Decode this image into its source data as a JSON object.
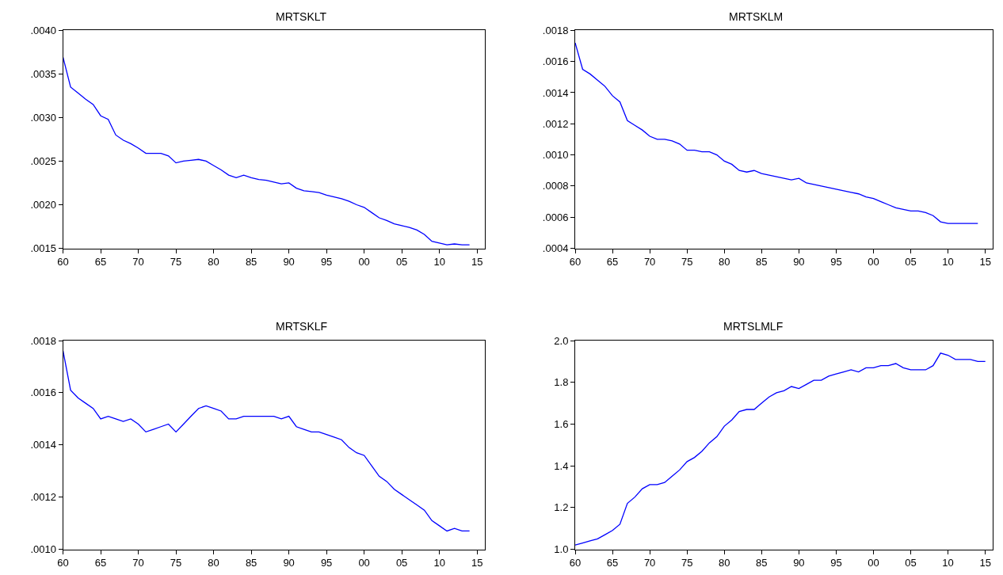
{
  "chart_data": [
    {
      "type": "line",
      "title": "MRTSKLT",
      "x": [
        1960,
        1961,
        1962,
        1963,
        1964,
        1965,
        1966,
        1967,
        1968,
        1969,
        1970,
        1971,
        1972,
        1973,
        1974,
        1975,
        1976,
        1977,
        1978,
        1979,
        1980,
        1981,
        1982,
        1983,
        1984,
        1985,
        1986,
        1987,
        1988,
        1989,
        1990,
        1991,
        1992,
        1993,
        1994,
        1995,
        1996,
        1997,
        1998,
        1999,
        2000,
        2001,
        2002,
        2003,
        2004,
        2005,
        2006,
        2007,
        2008,
        2009,
        2010,
        2011,
        2012,
        2013,
        2014
      ],
      "series": [
        {
          "color": "#0000ff",
          "values": [
            0.00369,
            0.00335,
            0.00328,
            0.00321,
            0.00315,
            0.00302,
            0.00298,
            0.0028,
            0.00274,
            0.0027,
            0.00265,
            0.00259,
            0.00259,
            0.00259,
            0.00256,
            0.00248,
            0.0025,
            0.00251,
            0.00252,
            0.0025,
            0.00245,
            0.0024,
            0.00234,
            0.00231,
            0.00234,
            0.00231,
            0.00229,
            0.00228,
            0.00226,
            0.00224,
            0.00225,
            0.00219,
            0.00216,
            0.00215,
            0.00214,
            0.00211,
            0.00209,
            0.00207,
            0.00204,
            0.002,
            0.00197,
            0.00191,
            0.00185,
            0.00182,
            0.00178,
            0.00176,
            0.00174,
            0.00171,
            0.00166,
            0.00158,
            0.00156,
            0.00154,
            0.00155,
            0.00154,
            0.00154
          ]
        }
      ],
      "xlim": [
        1960,
        2016
      ],
      "xticks": [
        {
          "value": 1960,
          "label": "60"
        },
        {
          "value": 1965,
          "label": "65"
        },
        {
          "value": 1970,
          "label": "70"
        },
        {
          "value": 1975,
          "label": "75"
        },
        {
          "value": 1980,
          "label": "80"
        },
        {
          "value": 1985,
          "label": "85"
        },
        {
          "value": 1990,
          "label": "90"
        },
        {
          "value": 1995,
          "label": "95"
        },
        {
          "value": 2000,
          "label": "00"
        },
        {
          "value": 2005,
          "label": "05"
        },
        {
          "value": 2010,
          "label": "10"
        },
        {
          "value": 2015,
          "label": "15"
        }
      ],
      "ylim": [
        0.0015,
        0.004
      ],
      "yticks": [
        {
          "value": 0.0015,
          "label": ".0015"
        },
        {
          "value": 0.002,
          "label": ".0020"
        },
        {
          "value": 0.0025,
          "label": ".0025"
        },
        {
          "value": 0.003,
          "label": ".0030"
        },
        {
          "value": 0.0035,
          "label": ".0035"
        },
        {
          "value": 0.004,
          "label": ".0040"
        }
      ],
      "marker": "none",
      "line_style": "solid"
    },
    {
      "type": "line",
      "title": "MRTSKLM",
      "x": [
        1960,
        1961,
        1962,
        1963,
        1964,
        1965,
        1966,
        1967,
        1968,
        1969,
        1970,
        1971,
        1972,
        1973,
        1974,
        1975,
        1976,
        1977,
        1978,
        1979,
        1980,
        1981,
        1982,
        1983,
        1984,
        1985,
        1986,
        1987,
        1988,
        1989,
        1990,
        1991,
        1992,
        1993,
        1994,
        1995,
        1996,
        1997,
        1998,
        1999,
        2000,
        2001,
        2002,
        2003,
        2004,
        2005,
        2006,
        2007,
        2008,
        2009,
        2010,
        2011,
        2012,
        2013,
        2014
      ],
      "series": [
        {
          "color": "#0000ff",
          "values": [
            0.00172,
            0.00155,
            0.00152,
            0.00148,
            0.00144,
            0.00138,
            0.00134,
            0.00122,
            0.00119,
            0.00116,
            0.00112,
            0.0011,
            0.0011,
            0.00109,
            0.00107,
            0.00103,
            0.00103,
            0.00102,
            0.00102,
            0.001,
            0.00096,
            0.00094,
            0.0009,
            0.00089,
            0.0009,
            0.00088,
            0.00087,
            0.00086,
            0.00085,
            0.00084,
            0.00085,
            0.00082,
            0.00081,
            0.0008,
            0.00079,
            0.00078,
            0.00077,
            0.00076,
            0.00075,
            0.00073,
            0.00072,
            0.0007,
            0.00068,
            0.00066,
            0.00065,
            0.00064,
            0.00064,
            0.00063,
            0.00061,
            0.00057,
            0.00056,
            0.00056,
            0.00056,
            0.00056,
            0.00056
          ]
        }
      ],
      "xlim": [
        1960,
        2016
      ],
      "xticks": [
        {
          "value": 1960,
          "label": "60"
        },
        {
          "value": 1965,
          "label": "65"
        },
        {
          "value": 1970,
          "label": "70"
        },
        {
          "value": 1975,
          "label": "75"
        },
        {
          "value": 1980,
          "label": "80"
        },
        {
          "value": 1985,
          "label": "85"
        },
        {
          "value": 1990,
          "label": "90"
        },
        {
          "value": 1995,
          "label": "95"
        },
        {
          "value": 2000,
          "label": "00"
        },
        {
          "value": 2005,
          "label": "05"
        },
        {
          "value": 2010,
          "label": "10"
        },
        {
          "value": 2015,
          "label": "15"
        }
      ],
      "ylim": [
        0.0004,
        0.0018
      ],
      "yticks": [
        {
          "value": 0.0004,
          "label": ".0004"
        },
        {
          "value": 0.0006,
          "label": ".0006"
        },
        {
          "value": 0.0008,
          "label": ".0008"
        },
        {
          "value": 0.001,
          "label": ".0010"
        },
        {
          "value": 0.0012,
          "label": ".0012"
        },
        {
          "value": 0.0014,
          "label": ".0014"
        },
        {
          "value": 0.0016,
          "label": ".0016"
        },
        {
          "value": 0.0018,
          "label": ".0018"
        }
      ],
      "marker": "none",
      "line_style": "solid"
    },
    {
      "type": "line",
      "title": "MRTSKLF",
      "x": [
        1960,
        1961,
        1962,
        1963,
        1964,
        1965,
        1966,
        1967,
        1968,
        1969,
        1970,
        1971,
        1972,
        1973,
        1974,
        1975,
        1976,
        1977,
        1978,
        1979,
        1980,
        1981,
        1982,
        1983,
        1984,
        1985,
        1986,
        1987,
        1988,
        1989,
        1990,
        1991,
        1992,
        1993,
        1994,
        1995,
        1996,
        1997,
        1998,
        1999,
        2000,
        2001,
        2002,
        2003,
        2004,
        2005,
        2006,
        2007,
        2008,
        2009,
        2010,
        2011,
        2012,
        2013,
        2014
      ],
      "series": [
        {
          "color": "#0000ff",
          "values": [
            0.00176,
            0.00161,
            0.00158,
            0.00156,
            0.00154,
            0.0015,
            0.00151,
            0.0015,
            0.00149,
            0.0015,
            0.00148,
            0.00145,
            0.00146,
            0.00147,
            0.00148,
            0.00145,
            0.00148,
            0.00151,
            0.00154,
            0.00155,
            0.00154,
            0.00153,
            0.0015,
            0.0015,
            0.00151,
            0.00151,
            0.00151,
            0.00151,
            0.00151,
            0.0015,
            0.00151,
            0.00147,
            0.00146,
            0.00145,
            0.00145,
            0.00144,
            0.00143,
            0.00142,
            0.00139,
            0.00137,
            0.00136,
            0.00132,
            0.00128,
            0.00126,
            0.00123,
            0.00121,
            0.00119,
            0.00117,
            0.00115,
            0.00111,
            0.00109,
            0.00107,
            0.00108,
            0.00107,
            0.00107
          ]
        }
      ],
      "xlim": [
        1960,
        2016
      ],
      "xticks": [
        {
          "value": 1960,
          "label": "60"
        },
        {
          "value": 1965,
          "label": "65"
        },
        {
          "value": 1970,
          "label": "70"
        },
        {
          "value": 1975,
          "label": "75"
        },
        {
          "value": 1980,
          "label": "80"
        },
        {
          "value": 1985,
          "label": "85"
        },
        {
          "value": 1990,
          "label": "90"
        },
        {
          "value": 1995,
          "label": "95"
        },
        {
          "value": 2000,
          "label": "00"
        },
        {
          "value": 2005,
          "label": "05"
        },
        {
          "value": 2010,
          "label": "10"
        },
        {
          "value": 2015,
          "label": "15"
        }
      ],
      "ylim": [
        0.001,
        0.0018
      ],
      "yticks": [
        {
          "value": 0.001,
          "label": ".0010"
        },
        {
          "value": 0.0012,
          "label": ".0012"
        },
        {
          "value": 0.0014,
          "label": ".0014"
        },
        {
          "value": 0.0016,
          "label": ".0016"
        },
        {
          "value": 0.0018,
          "label": ".0018"
        }
      ],
      "marker": "none",
      "line_style": "solid"
    },
    {
      "type": "line",
      "title": "MRTSLMLF",
      "x": [
        1960,
        1961,
        1962,
        1963,
        1964,
        1965,
        1966,
        1967,
        1968,
        1969,
        1970,
        1971,
        1972,
        1973,
        1974,
        1975,
        1976,
        1977,
        1978,
        1979,
        1980,
        1981,
        1982,
        1983,
        1984,
        1985,
        1986,
        1987,
        1988,
        1989,
        1990,
        1991,
        1992,
        1993,
        1994,
        1995,
        1996,
        1997,
        1998,
        1999,
        2000,
        2001,
        2002,
        2003,
        2004,
        2005,
        2006,
        2007,
        2008,
        2009,
        2010,
        2011,
        2012,
        2013,
        2014,
        2015
      ],
      "series": [
        {
          "color": "#0000ff",
          "values": [
            1.02,
            1.03,
            1.04,
            1.05,
            1.07,
            1.09,
            1.12,
            1.22,
            1.25,
            1.29,
            1.31,
            1.31,
            1.32,
            1.35,
            1.38,
            1.42,
            1.44,
            1.47,
            1.51,
            1.54,
            1.59,
            1.62,
            1.66,
            1.67,
            1.67,
            1.7,
            1.73,
            1.75,
            1.76,
            1.78,
            1.77,
            1.79,
            1.81,
            1.81,
            1.83,
            1.84,
            1.85,
            1.86,
            1.85,
            1.87,
            1.87,
            1.88,
            1.88,
            1.89,
            1.87,
            1.86,
            1.86,
            1.86,
            1.88,
            1.94,
            1.93,
            1.91,
            1.91,
            1.91,
            1.9,
            1.9
          ]
        }
      ],
      "xlim": [
        1960,
        2016
      ],
      "xticks": [
        {
          "value": 1960,
          "label": "60"
        },
        {
          "value": 1965,
          "label": "65"
        },
        {
          "value": 1970,
          "label": "70"
        },
        {
          "value": 1975,
          "label": "75"
        },
        {
          "value": 1980,
          "label": "80"
        },
        {
          "value": 1985,
          "label": "85"
        },
        {
          "value": 1990,
          "label": "90"
        },
        {
          "value": 1995,
          "label": "95"
        },
        {
          "value": 2000,
          "label": "00"
        },
        {
          "value": 2005,
          "label": "05"
        },
        {
          "value": 2010,
          "label": "10"
        },
        {
          "value": 2015,
          "label": "15"
        }
      ],
      "ylim": [
        1.0,
        2.0
      ],
      "yticks": [
        {
          "value": 1.0,
          "label": "1.0"
        },
        {
          "value": 1.2,
          "label": "1.2"
        },
        {
          "value": 1.4,
          "label": "1.4"
        },
        {
          "value": 1.6,
          "label": "1.6"
        },
        {
          "value": 1.8,
          "label": "1.8"
        },
        {
          "value": 2.0,
          "label": "2.0"
        }
      ],
      "marker": "none",
      "line_style": "solid"
    }
  ]
}
